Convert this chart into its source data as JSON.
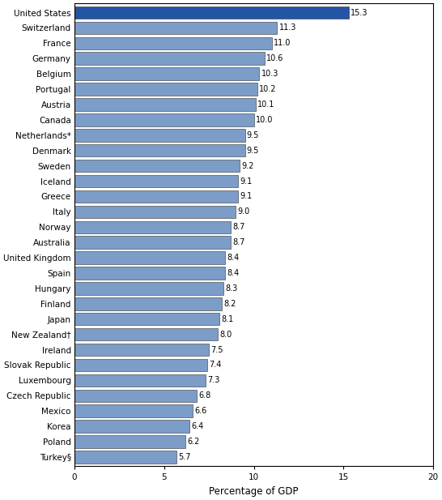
{
  "countries": [
    "United States",
    "Switzerland",
    "France",
    "Germany",
    "Belgium",
    "Portugal",
    "Austria",
    "Canada",
    "Netherlands*",
    "Denmark",
    "Sweden",
    "Iceland",
    "Greece",
    "Italy",
    "Norway",
    "Australia",
    "United Kingdom",
    "Spain",
    "Hungary",
    "Finland",
    "Japan",
    "New Zealand†",
    "Ireland",
    "Slovak Republic",
    "Luxembourg",
    "Czech Republic",
    "Mexico",
    "Korea",
    "Poland",
    "Turkey§"
  ],
  "values": [
    15.3,
    11.3,
    11.0,
    10.6,
    10.3,
    10.2,
    10.1,
    10.0,
    9.5,
    9.5,
    9.2,
    9.1,
    9.1,
    9.0,
    8.7,
    8.7,
    8.4,
    8.4,
    8.3,
    8.2,
    8.1,
    8.0,
    7.5,
    7.4,
    7.3,
    6.8,
    6.6,
    6.4,
    6.2,
    5.7
  ],
  "bar_color_default": "#7B9DC8",
  "bar_color_us": "#2255A4",
  "xlabel": "Percentage of GDP",
  "xlim": [
    0,
    20
  ],
  "xticks": [
    0,
    5,
    10,
    15,
    20
  ],
  "figsize": [
    5.46,
    6.17
  ],
  "dpi": 100,
  "bar_height": 0.82,
  "label_fontsize": 7.0,
  "tick_fontsize": 7.5
}
